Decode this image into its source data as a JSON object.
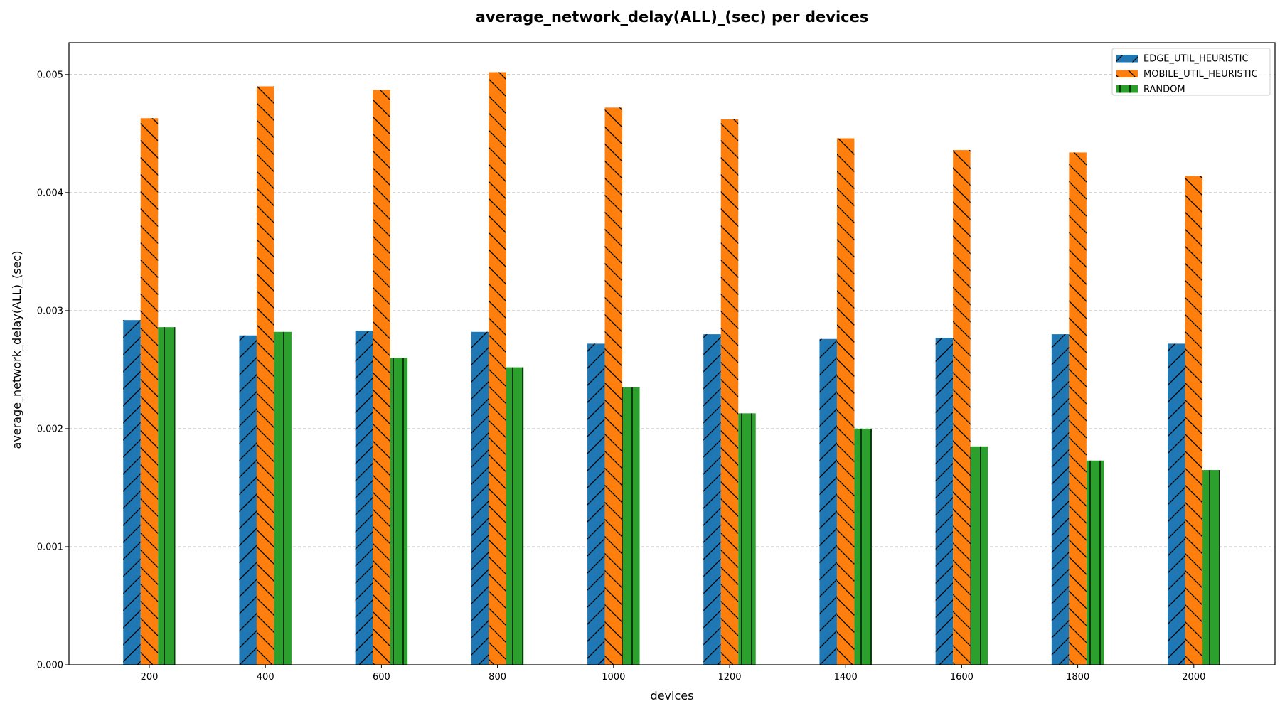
{
  "chart_data": {
    "type": "bar",
    "title": "average_network_delay(ALL)_(sec) per devices",
    "xlabel": "devices",
    "ylabel": "average_network_delay(ALL)_(sec)",
    "categories": [
      "200",
      "400",
      "600",
      "800",
      "1000",
      "1200",
      "1400",
      "1600",
      "1800",
      "2000"
    ],
    "ylim": [
      0,
      0.00527
    ],
    "yticks": [
      "0.000",
      "0.001",
      "0.002",
      "0.003",
      "0.004",
      "0.005"
    ],
    "grid": "y-dashed",
    "legend_position": "top-right",
    "series": [
      {
        "name": "EDGE_UTIL_HEURISTIC",
        "color": "#1f77b4",
        "hatch": "forward-slash",
        "values": [
          0.00292,
          0.00279,
          0.00283,
          0.00282,
          0.00272,
          0.0028,
          0.00276,
          0.00277,
          0.0028,
          0.00272
        ]
      },
      {
        "name": "MOBILE_UTIL_HEURISTIC",
        "color": "#ff7f0e",
        "hatch": "back-slash",
        "values": [
          0.00463,
          0.0049,
          0.00487,
          0.00502,
          0.00472,
          0.00462,
          0.00446,
          0.00436,
          0.00434,
          0.00414
        ]
      },
      {
        "name": "RANDOM",
        "color": "#2ca02c",
        "hatch": "vertical",
        "values": [
          0.00286,
          0.00282,
          0.0026,
          0.00252,
          0.00235,
          0.00213,
          0.002,
          0.00185,
          0.00173,
          0.00165
        ]
      }
    ]
  }
}
